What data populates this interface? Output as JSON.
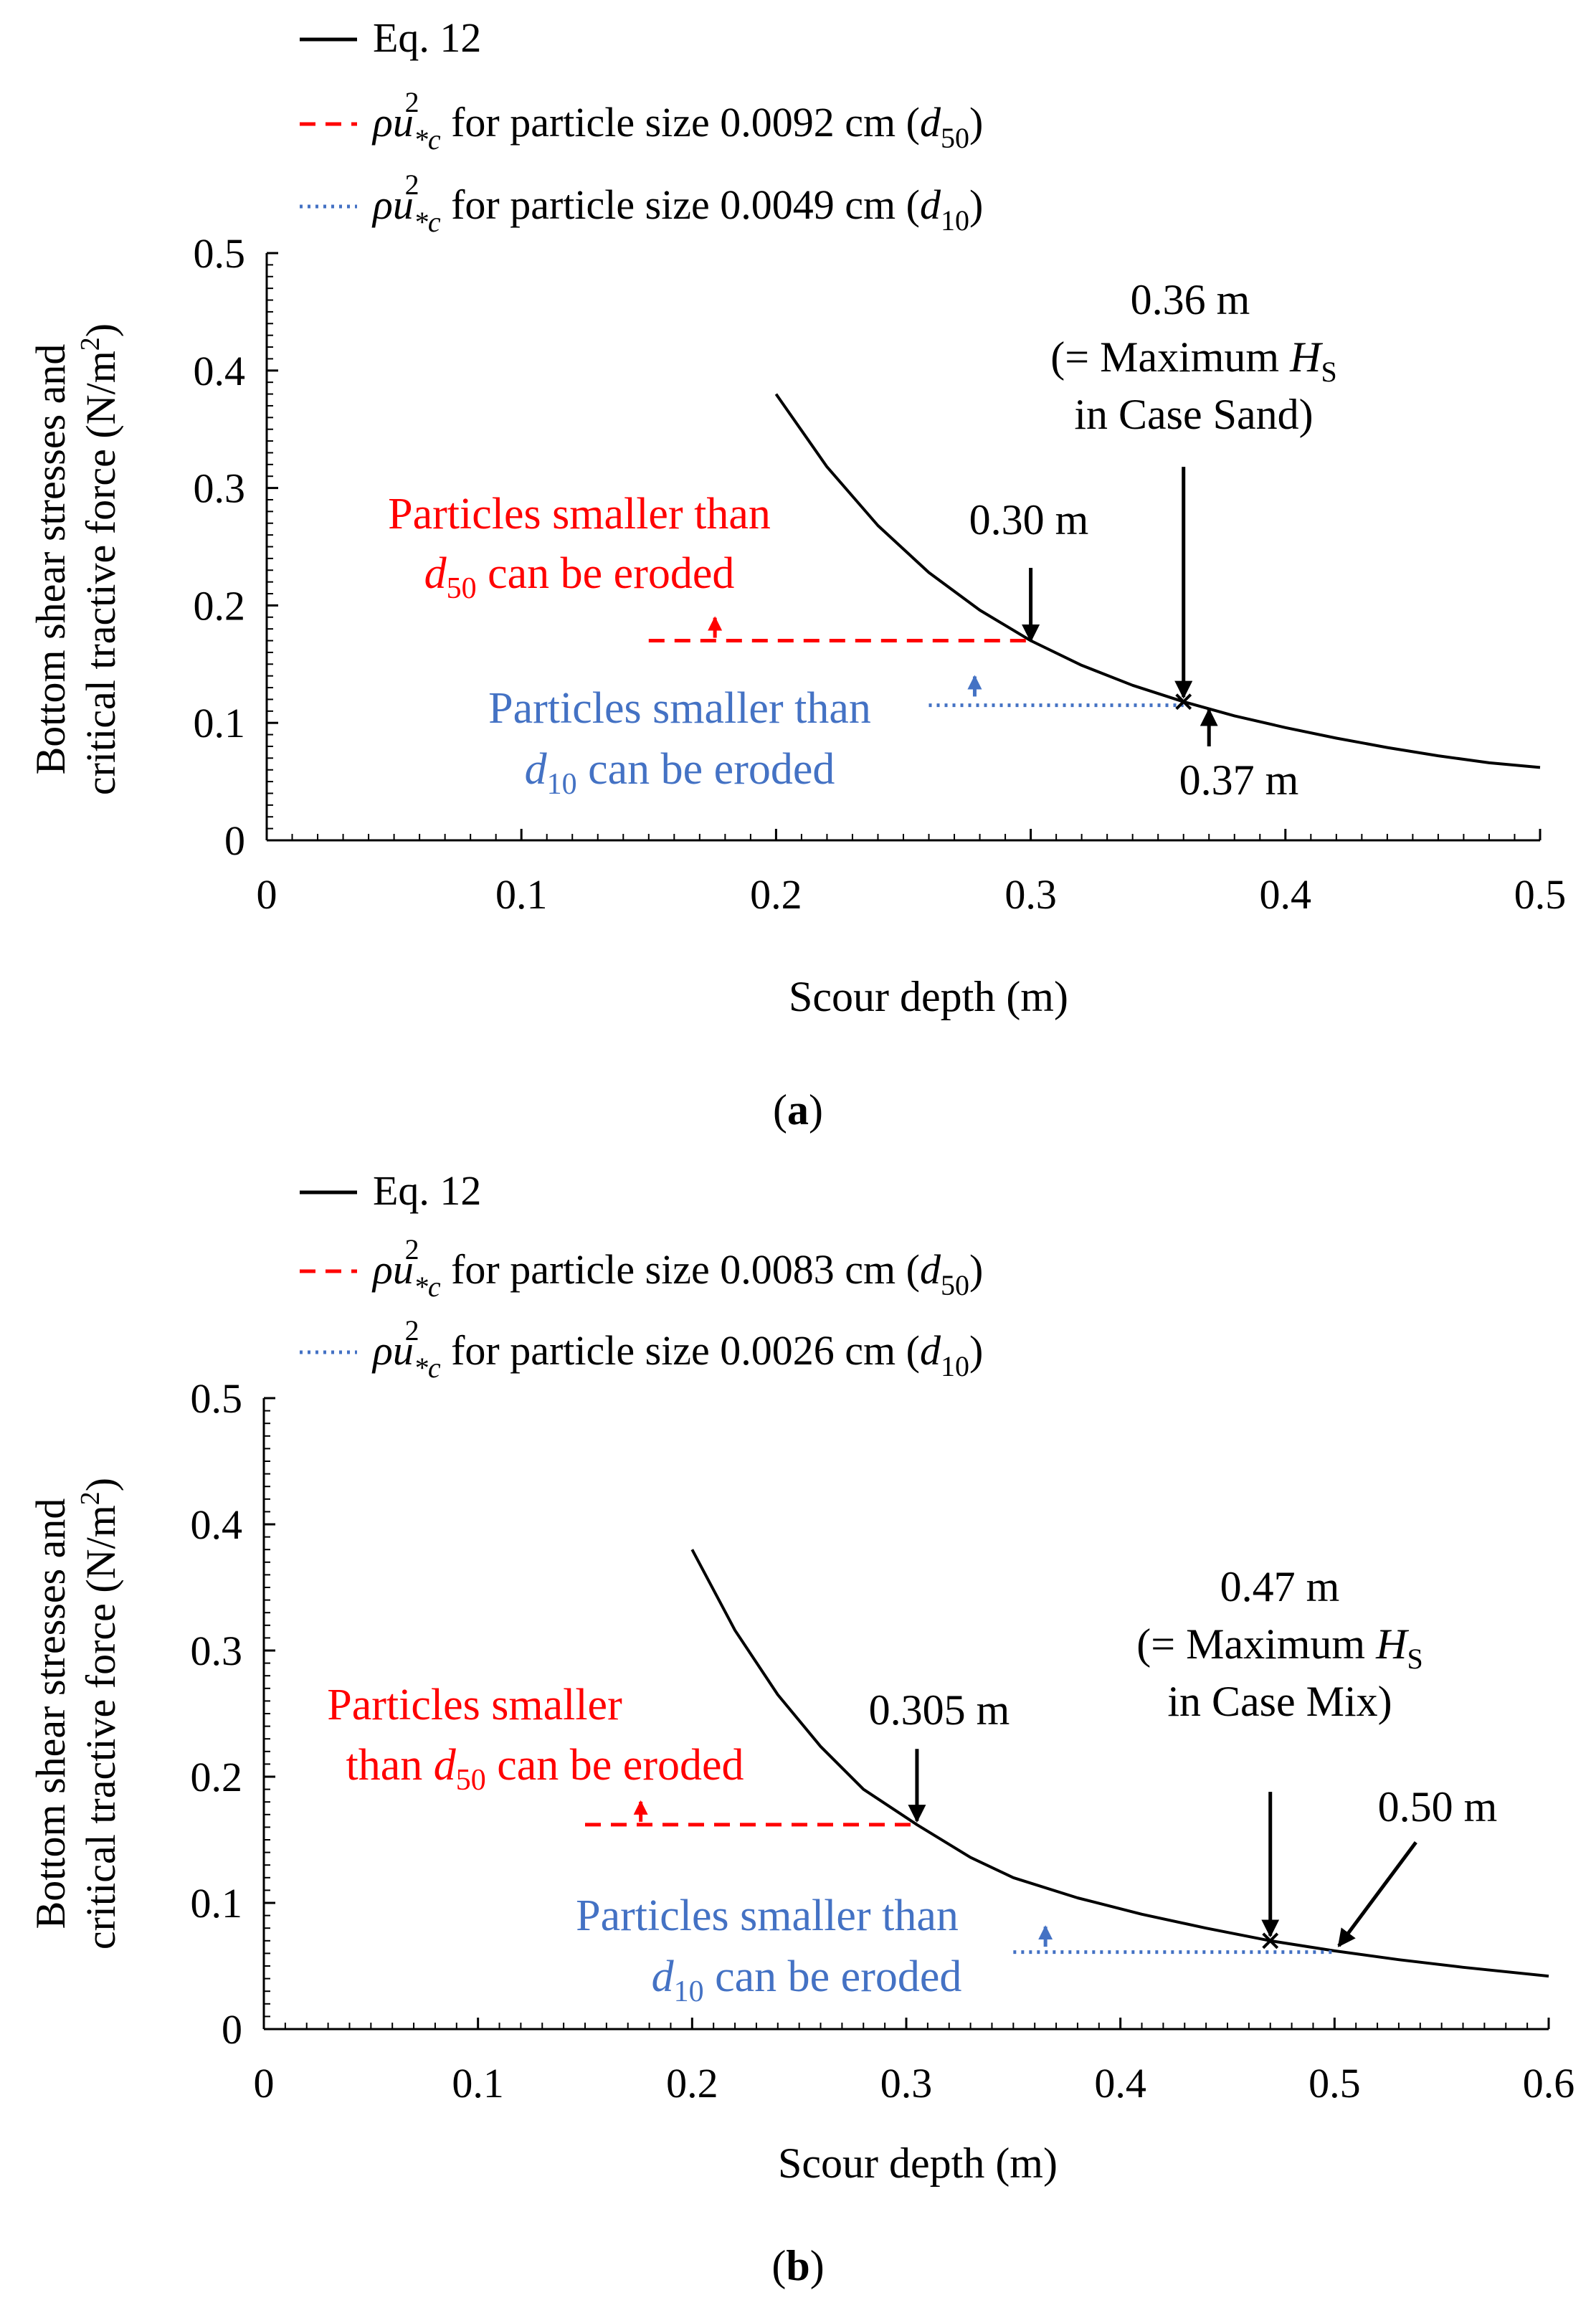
{
  "colors": {
    "curve": "#000000",
    "d50": "#ff0000",
    "d10": "#4472c4",
    "axis": "#000000"
  },
  "chart_data": [
    {
      "type": "line",
      "panel_label": "a",
      "xlabel": "Scour depth (m)",
      "ylabel_line1": "Bottom shear stresses and",
      "ylabel_line2": "critical tractive force (N/m",
      "ylabel_sup": "2",
      "ylabel_close": ")",
      "xlim": [
        0,
        0.5
      ],
      "ylim": [
        0,
        0.5
      ],
      "xticks": [
        0,
        0.1,
        0.2,
        0.3,
        0.4,
        0.5
      ],
      "xtick_labels": [
        "0",
        "0.1",
        "0.2",
        "0.3",
        "0.4",
        "0.5"
      ],
      "yticks": [
        0,
        0.1,
        0.2,
        0.3,
        0.4,
        0.5
      ],
      "ytick_labels": [
        "0",
        "0.1",
        "0.2",
        "0.3",
        "0.4",
        "0.5"
      ],
      "legend": [
        {
          "style": "solid",
          "label": "Eq. 12"
        },
        {
          "style": "dashed",
          "prefix": "ρu",
          "sub": "*c",
          "sup": "2",
          "text": " for particle size 0.0092 cm (",
          "dvar": "d",
          "dsub": "50",
          "close": ")"
        },
        {
          "style": "dotted",
          "prefix": "ρu",
          "sub": "*c",
          "sup": "2",
          "text": " for particle size 0.0049 cm (",
          "dvar": "d",
          "dsub": "10",
          "close": ")"
        }
      ],
      "series": [
        {
          "name": "Eq. 12",
          "x": [
            0.2,
            0.22,
            0.24,
            0.26,
            0.28,
            0.3,
            0.32,
            0.34,
            0.36,
            0.38,
            0.4,
            0.42,
            0.44,
            0.46,
            0.48,
            0.5
          ],
          "y": [
            0.38,
            0.318,
            0.268,
            0.228,
            0.196,
            0.17,
            0.149,
            0.132,
            0.118,
            0.106,
            0.096,
            0.087,
            0.079,
            0.072,
            0.066,
            0.062
          ]
        },
        {
          "name": "d50 critical",
          "x": [
            0.15,
            0.3
          ],
          "y": [
            0.17,
            0.17
          ]
        },
        {
          "name": "d10 critical",
          "x": [
            0.26,
            0.36
          ],
          "y": [
            0.115,
            0.115
          ]
        }
      ],
      "marker": {
        "x": 0.36,
        "y": 0.118
      },
      "arrows": [
        {
          "tip_x": 0.3,
          "tip_y": 0.17,
          "from_x": 0.3,
          "from_y": 0.232
        },
        {
          "tip_x": 0.36,
          "tip_y": 0.122,
          "from_x": 0.36,
          "from_y": 0.318
        },
        {
          "tip_x": 0.37,
          "tip_y": 0.111,
          "from_x": 0.37,
          "from_y": 0.08
        }
      ],
      "up_arrows": [
        {
          "x": 0.176,
          "y": 0.17,
          "color": "d50"
        },
        {
          "x": 0.278,
          "y": 0.12,
          "color": "d10"
        }
      ],
      "ann_030": "0.30 m",
      "ann_036": "0.36 m",
      "ann_max_pre": "(= Maximum ",
      "ann_max_var": "H",
      "ann_max_sub": "S",
      "ann_case": "in Case Sand)",
      "ann_037": "0.37 m",
      "red_line1": "Particles smaller than",
      "red_line2_var": "d",
      "red_line2_sub": "50",
      "red_line2_rest": " can be eroded",
      "blue_line1": "Particles smaller than",
      "blue_line2_var": "d",
      "blue_line2_sub": "10",
      "blue_line2_rest": " can be eroded"
    },
    {
      "type": "line",
      "panel_label": "b",
      "xlabel": "Scour depth (m)",
      "ylabel_line1": "Bottom shear stresses and",
      "ylabel_line2": "critical tractive force (N/m",
      "ylabel_sup": "2",
      "ylabel_close": ")",
      "xlim": [
        0,
        0.6
      ],
      "ylim": [
        0,
        0.5
      ],
      "xticks": [
        0,
        0.1,
        0.2,
        0.3,
        0.4,
        0.5,
        0.6
      ],
      "xtick_labels": [
        "0",
        "0.1",
        "0.2",
        "0.3",
        "0.4",
        "0.5",
        "0.6"
      ],
      "yticks": [
        0,
        0.1,
        0.2,
        0.3,
        0.4,
        0.5
      ],
      "ytick_labels": [
        "0",
        "0.1",
        "0.2",
        "0.3",
        "0.4",
        "0.5"
      ],
      "legend": [
        {
          "style": "solid",
          "label": "Eq. 12"
        },
        {
          "style": "dashed",
          "prefix": "ρu",
          "sub": "*c",
          "sup": "2",
          "text": " for particle size 0.0083 cm (",
          "dvar": "d",
          "dsub": "50",
          "close": ")"
        },
        {
          "style": "dotted",
          "prefix": "ρu",
          "sub": "*c",
          "sup": "2",
          "text": " for particle size 0.0026 cm (",
          "dvar": "d",
          "dsub": "10",
          "close": ")"
        }
      ],
      "series": [
        {
          "name": "Eq. 12",
          "x": [
            0.2,
            0.22,
            0.24,
            0.26,
            0.28,
            0.305,
            0.33,
            0.35,
            0.38,
            0.41,
            0.44,
            0.47,
            0.5,
            0.53,
            0.56,
            0.6
          ],
          "y": [
            0.38,
            0.316,
            0.265,
            0.224,
            0.19,
            0.162,
            0.136,
            0.12,
            0.104,
            0.091,
            0.08,
            0.07,
            0.062,
            0.055,
            0.049,
            0.042
          ]
        },
        {
          "name": "d50 critical",
          "x": [
            0.15,
            0.305
          ],
          "y": [
            0.162,
            0.162
          ]
        },
        {
          "name": "d10 critical",
          "x": [
            0.35,
            0.5
          ],
          "y": [
            0.061,
            0.061
          ]
        }
      ],
      "marker": {
        "x": 0.47,
        "y": 0.07
      },
      "arrows": [
        {
          "tip_x": 0.305,
          "tip_y": 0.165,
          "from_x": 0.305,
          "from_y": 0.222
        },
        {
          "tip_x": 0.47,
          "tip_y": 0.074,
          "from_x": 0.47,
          "from_y": 0.188
        },
        {
          "tip_x": 0.502,
          "tip_y": 0.066,
          "from_x": 0.538,
          "from_y": 0.148
        }
      ],
      "up_arrows": [
        {
          "x": 0.176,
          "y": 0.162,
          "color": "d50"
        },
        {
          "x": 0.365,
          "y": 0.063,
          "color": "d10"
        }
      ],
      "ann_0305": "0.305 m",
      "ann_047": "0.47 m",
      "ann_max_pre": "(= Maximum ",
      "ann_max_var": "H",
      "ann_max_sub": "S",
      "ann_case": "in Case Mix)",
      "ann_050": "0.50 m",
      "red_line1": "Particles smaller",
      "red_line2_pre": "than ",
      "red_line2_var": "d",
      "red_line2_sub": "50",
      "red_line2_rest": " can be eroded",
      "blue_line1": "Particles smaller than",
      "blue_line2_var": "d",
      "blue_line2_sub": "10",
      "blue_line2_rest": " can be eroded"
    }
  ]
}
